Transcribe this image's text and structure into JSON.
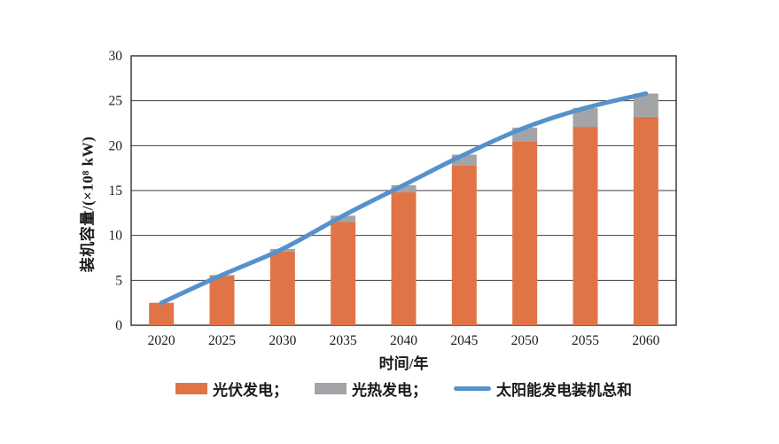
{
  "figure": {
    "background": "#ffffff"
  },
  "chart_data": {
    "type": "bar",
    "subtype": "stacked-bars-with-total-line",
    "title": "",
    "categories": [
      "2020",
      "2025",
      "2030",
      "2035",
      "2040",
      "2045",
      "2050",
      "2055",
      "2060"
    ],
    "series": [
      {
        "name": "光伏发电",
        "kind": "bar",
        "color": "#E17447",
        "values": [
          2.5,
          5.5,
          8.2,
          11.5,
          14.8,
          17.8,
          20.5,
          22.1,
          23.2
        ]
      },
      {
        "name": "光热发电",
        "kind": "bar",
        "color": "#A2A4A7",
        "values": [
          0,
          0.1,
          0.3,
          0.7,
          0.8,
          1.2,
          1.5,
          2.1,
          2.6
        ]
      },
      {
        "name": "太阳能发电装机总和",
        "kind": "line",
        "color": "#5591CB",
        "values": [
          2.5,
          5.6,
          8.5,
          12.2,
          15.6,
          19.0,
          22.0,
          24.2,
          25.8
        ]
      }
    ],
    "xlabel": "时间/年",
    "ylabel": "装机容量/(×10⁸ kW)",
    "ylim": [
      0,
      30
    ],
    "yticks": [
      0,
      5,
      10,
      15,
      20,
      25,
      30
    ],
    "grid": "horizontal",
    "legend_position": "bottom"
  },
  "legend": {
    "items": [
      {
        "label": "光伏发电；",
        "swatch": "rect",
        "color": "#E17447"
      },
      {
        "label": "光热发电；",
        "swatch": "rect",
        "color": "#A2A4A7"
      },
      {
        "label": "太阳能发电装机总和",
        "swatch": "line",
        "color": "#5591CB"
      }
    ]
  },
  "colors": {
    "pv_orange": "#E17447",
    "csp_gray": "#A2A4A7",
    "total_blue": "#5591CB",
    "axis_line": "#2e2e2e",
    "grid_line": "#3d3d3d",
    "text": "#1a1a1a"
  }
}
